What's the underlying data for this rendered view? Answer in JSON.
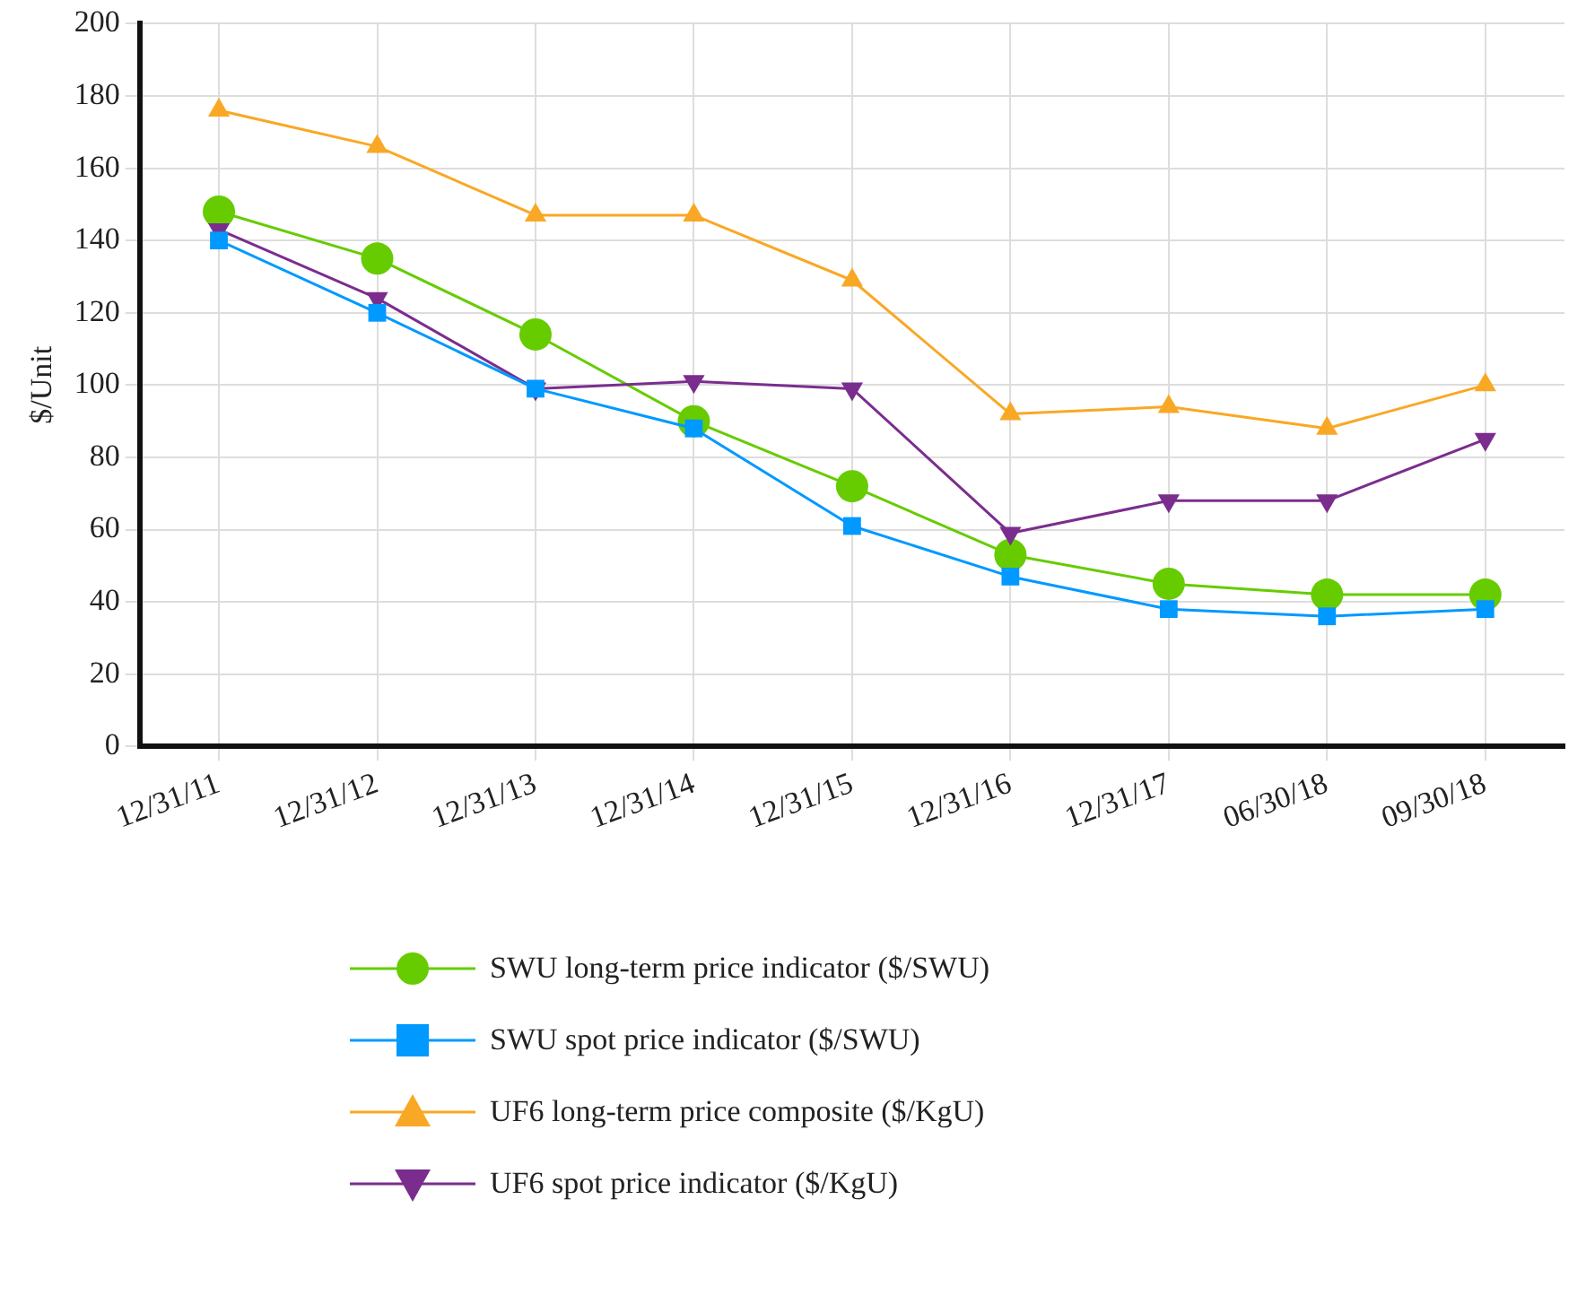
{
  "chart_data": {
    "type": "line",
    "ylabel": "$/Unit",
    "categories": [
      "12/31/11",
      "12/31/12",
      "12/31/13",
      "12/31/14",
      "12/31/15",
      "12/31/16",
      "12/31/17",
      "06/30/18",
      "09/30/18"
    ],
    "series": [
      {
        "name": "SWU long-term price indicator ($/SWU)",
        "color": "#66cc00",
        "marker": "circle",
        "values": [
          148,
          135,
          114,
          90,
          72,
          53,
          45,
          42,
          42
        ]
      },
      {
        "name": "SWU spot price indicator ($/SWU)",
        "color": "#0099ff",
        "marker": "square",
        "values": [
          140,
          120,
          99,
          88,
          61,
          47,
          38,
          36,
          38
        ]
      },
      {
        "name": "UF6 long-term price composite ($/KgU)",
        "color": "#f9a825",
        "marker": "triangle",
        "values": [
          176,
          166,
          147,
          147,
          129,
          92,
          94,
          88,
          100
        ]
      },
      {
        "name": "UF6 spot price indicator ($/KgU)",
        "color": "#7b2d8e",
        "marker": "triangle-down",
        "values": [
          143,
          124,
          99,
          101,
          99,
          59,
          68,
          68,
          85
        ]
      }
    ],
    "ylim": [
      0,
      200
    ],
    "yticks": [
      0,
      20,
      40,
      60,
      80,
      100,
      120,
      140,
      160,
      180,
      200
    ],
    "grid": true,
    "legend": "bottom",
    "line_style": "solid"
  }
}
